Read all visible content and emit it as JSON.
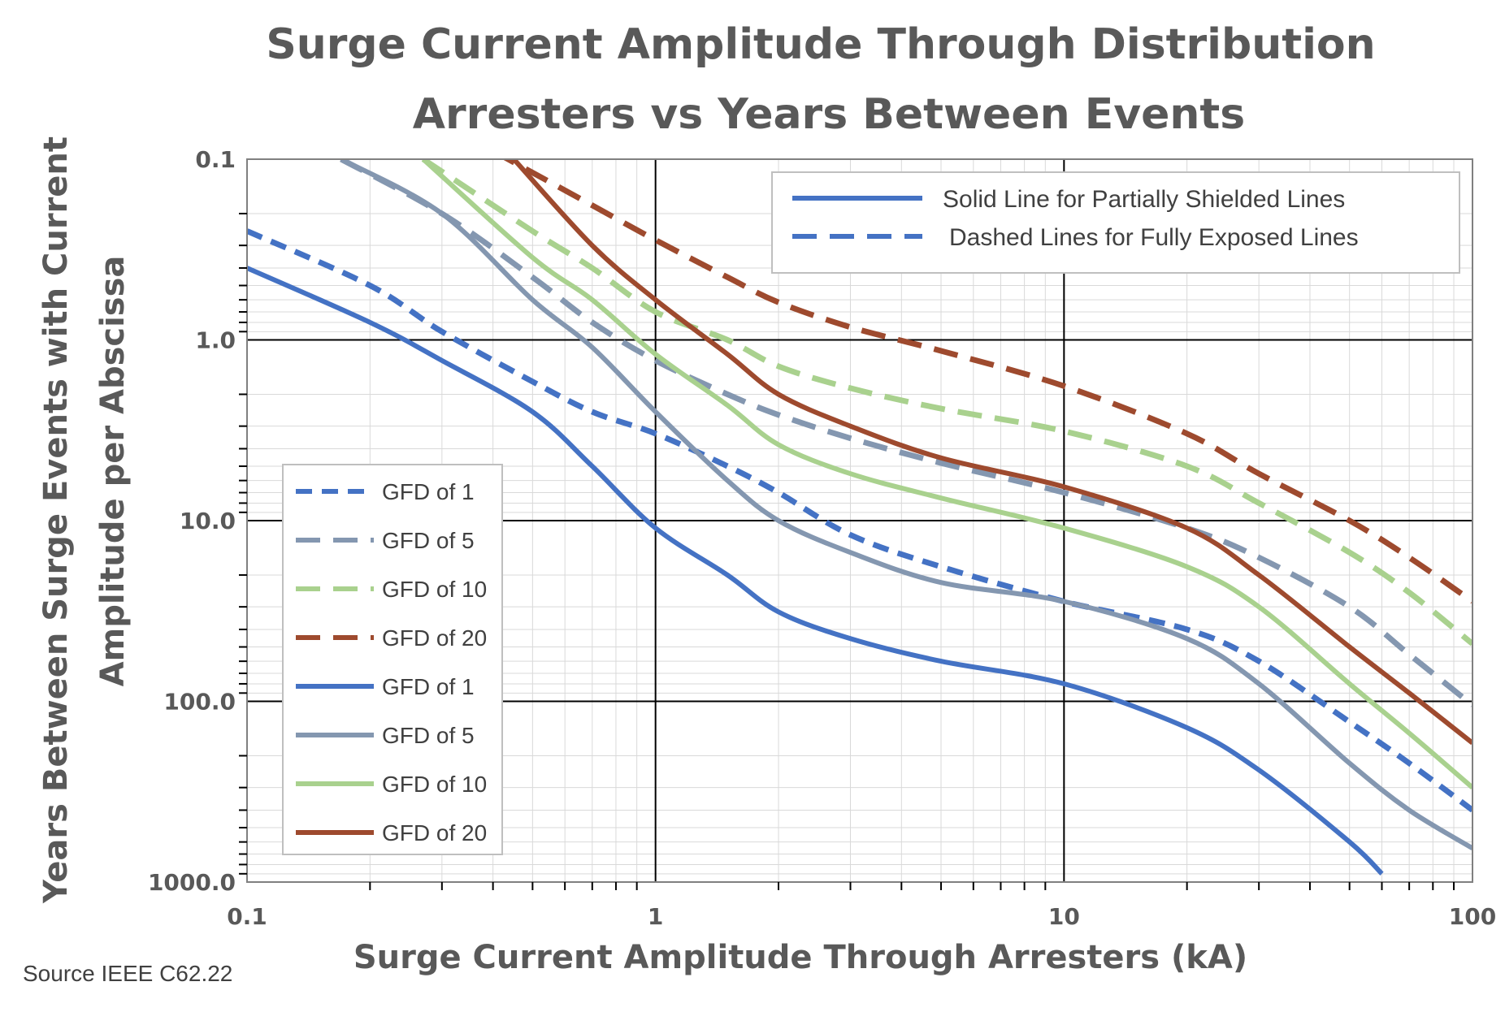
{
  "chart_data": {
    "type": "line",
    "title_lines": [
      "Surge Current Amplitude Through Distribution",
      "Arresters vs Years Between Events"
    ],
    "xlabel": "Surge Current  Amplitude  Through  Arresters (kA)",
    "ylabel_lines": [
      "Years Between Surge Events with Current",
      "Amplitude  per Abscissa"
    ],
    "x_scale": "log",
    "y_scale": "log",
    "y_inverted": true,
    "xlim": [
      0.1,
      100
    ],
    "ylim": [
      0.1,
      1000
    ],
    "x_ticks": [
      0.1,
      1,
      10,
      100
    ],
    "x_tick_labels": [
      "0.1",
      "1",
      "10",
      "100"
    ],
    "y_ticks": [
      0.1,
      1,
      10,
      100,
      1000
    ],
    "y_tick_labels": [
      "0.1",
      "1.0",
      "10.0",
      "100.0",
      "1000.0"
    ],
    "grid": true,
    "source": "Source IEEE C62.22",
    "style_legend": {
      "placement": "top-right",
      "entries": [
        {
          "label": "Solid Line for Partially Shielded Lines",
          "dash": "solid",
          "color": "#4472C4"
        },
        {
          "label": "Dashed Lines for Fully Exposed Lines",
          "dash": "dashed",
          "color": "#4472C4"
        }
      ]
    },
    "legend_placement": "left-center",
    "series": [
      {
        "name": "GFD of 1",
        "color": "#4472C4",
        "dash": "dashed",
        "points": [
          [
            0.1,
            0.25
          ],
          [
            0.2,
            0.5
          ],
          [
            0.3,
            0.9
          ],
          [
            0.5,
            1.7
          ],
          [
            0.7,
            2.5
          ],
          [
            1,
            3.3
          ],
          [
            1.5,
            5
          ],
          [
            2,
            7
          ],
          [
            3,
            12
          ],
          [
            5,
            18
          ],
          [
            10,
            28
          ],
          [
            20,
            40
          ],
          [
            30,
            60
          ],
          [
            50,
            130
          ],
          [
            70,
            220
          ],
          [
            100,
            400
          ]
        ]
      },
      {
        "name": "GFD of 5",
        "color": "#8497B0",
        "dash": "dashed",
        "points": [
          [
            0.17,
            0.1
          ],
          [
            0.3,
            0.2
          ],
          [
            0.5,
            0.45
          ],
          [
            0.7,
            0.8
          ],
          [
            1,
            1.3
          ],
          [
            1.5,
            2
          ],
          [
            2,
            2.6
          ],
          [
            3,
            3.5
          ],
          [
            5,
            4.8
          ],
          [
            10,
            7
          ],
          [
            20,
            11
          ],
          [
            30,
            16
          ],
          [
            50,
            30
          ],
          [
            70,
            55
          ],
          [
            100,
            105
          ]
        ]
      },
      {
        "name": "GFD of 10",
        "color": "#A9D18E",
        "dash": "dashed",
        "points": [
          [
            0.27,
            0.1
          ],
          [
            0.5,
            0.25
          ],
          [
            0.7,
            0.4
          ],
          [
            1,
            0.7
          ],
          [
            1.5,
            1
          ],
          [
            2,
            1.4
          ],
          [
            3,
            1.85
          ],
          [
            5,
            2.4
          ],
          [
            10,
            3.2
          ],
          [
            20,
            5
          ],
          [
            30,
            8
          ],
          [
            50,
            15
          ],
          [
            70,
            25
          ],
          [
            100,
            48
          ]
        ]
      },
      {
        "name": "GFD of 20",
        "color": "#9E4A2E",
        "dash": "dashed",
        "points": [
          [
            0.4,
            0.09
          ],
          [
            0.7,
            0.18
          ],
          [
            1,
            0.28
          ],
          [
            1.5,
            0.45
          ],
          [
            2,
            0.62
          ],
          [
            3,
            0.85
          ],
          [
            5,
            1.15
          ],
          [
            10,
            1.8
          ],
          [
            20,
            3.3
          ],
          [
            30,
            5.5
          ],
          [
            50,
            10
          ],
          [
            70,
            16
          ],
          [
            100,
            28
          ]
        ]
      },
      {
        "name": "GFD of 1",
        "color": "#4472C4",
        "dash": "solid",
        "points": [
          [
            0.1,
            0.4
          ],
          [
            0.2,
            0.8
          ],
          [
            0.3,
            1.3
          ],
          [
            0.5,
            2.5
          ],
          [
            0.7,
            5
          ],
          [
            1,
            11
          ],
          [
            1.5,
            20
          ],
          [
            2,
            32
          ],
          [
            3,
            45
          ],
          [
            5,
            60
          ],
          [
            10,
            80
          ],
          [
            20,
            140
          ],
          [
            30,
            240
          ],
          [
            50,
            600
          ],
          [
            60,
            900
          ]
        ]
      },
      {
        "name": "GFD of 5",
        "color": "#8497B0",
        "dash": "solid",
        "points": [
          [
            0.17,
            0.1
          ],
          [
            0.3,
            0.2
          ],
          [
            0.5,
            0.6
          ],
          [
            0.7,
            1.1
          ],
          [
            1,
            2.5
          ],
          [
            1.5,
            6
          ],
          [
            2,
            10
          ],
          [
            3,
            15
          ],
          [
            5,
            22
          ],
          [
            10,
            28
          ],
          [
            20,
            45
          ],
          [
            30,
            80
          ],
          [
            50,
            220
          ],
          [
            70,
            400
          ],
          [
            100,
            650
          ]
        ]
      },
      {
        "name": "GFD of 10",
        "color": "#A9D18E",
        "dash": "solid",
        "points": [
          [
            0.27,
            0.1
          ],
          [
            0.5,
            0.35
          ],
          [
            0.7,
            0.6
          ],
          [
            1,
            1.2
          ],
          [
            1.5,
            2.3
          ],
          [
            2,
            3.8
          ],
          [
            3,
            5.5
          ],
          [
            5,
            7.5
          ],
          [
            10,
            11
          ],
          [
            20,
            18
          ],
          [
            30,
            30
          ],
          [
            50,
            80
          ],
          [
            70,
            150
          ],
          [
            100,
            300
          ]
        ]
      },
      {
        "name": "GFD of 20",
        "color": "#9E4A2E",
        "dash": "solid",
        "points": [
          [
            0.45,
            0.1
          ],
          [
            0.7,
            0.3
          ],
          [
            1,
            0.6
          ],
          [
            1.5,
            1.2
          ],
          [
            2,
            2
          ],
          [
            3,
            3
          ],
          [
            5,
            4.5
          ],
          [
            10,
            6.5
          ],
          [
            20,
            11
          ],
          [
            30,
            20
          ],
          [
            50,
            50
          ],
          [
            70,
            90
          ],
          [
            100,
            170
          ]
        ]
      }
    ]
  }
}
